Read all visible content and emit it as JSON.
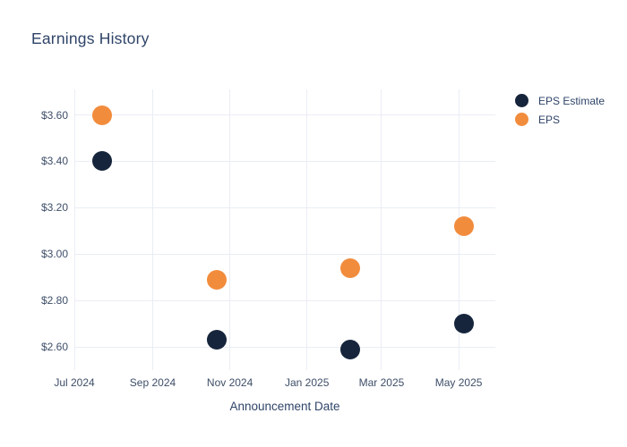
{
  "title": "Earnings History",
  "colors": {
    "background": "#FFFFFF",
    "grid": "#E9EDF4",
    "title_text": "#2F4468",
    "tick_text": "#3E4E68",
    "eps_estimate": "#16253C",
    "eps": "#F28C3D"
  },
  "legend": {
    "items": [
      {
        "label": "EPS Estimate",
        "color": "#16253C"
      },
      {
        "label": "EPS",
        "color": "#F28C3D"
      }
    ]
  },
  "chart_data": {
    "type": "scatter",
    "title": "Earnings History",
    "xlabel": "Announcement Date",
    "ylabel": "",
    "grid": true,
    "legend_position": "outside-top-right",
    "x_range": [
      "2024-07-01",
      "2025-05-30"
    ],
    "y_range": [
      2.5,
      3.71
    ],
    "x_ticks": [
      {
        "label": "Jul 2024",
        "date": "2024-07-01"
      },
      {
        "label": "Sep 2024",
        "date": "2024-09-01"
      },
      {
        "label": "Nov 2024",
        "date": "2024-11-01"
      },
      {
        "label": "Jan 2025",
        "date": "2025-01-01"
      },
      {
        "label": "Mar 2025",
        "date": "2025-03-01"
      },
      {
        "label": "May 2025",
        "date": "2025-05-01"
      }
    ],
    "y_ticks": [
      {
        "label": "$2.60",
        "value": 2.6
      },
      {
        "label": "$2.80",
        "value": 2.8
      },
      {
        "label": "$3.00",
        "value": 3.0
      },
      {
        "label": "$3.20",
        "value": 3.2
      },
      {
        "label": "$3.40",
        "value": 3.4
      },
      {
        "label": "$3.60",
        "value": 3.6
      }
    ],
    "series": [
      {
        "name": "EPS Estimate",
        "color": "#16253C",
        "points": [
          {
            "date": "2024-07-23",
            "value": 3.4
          },
          {
            "date": "2024-10-22",
            "value": 2.63
          },
          {
            "date": "2025-02-04",
            "value": 2.59
          },
          {
            "date": "2025-05-05",
            "value": 2.7
          }
        ]
      },
      {
        "name": "EPS",
        "color": "#F28C3D",
        "points": [
          {
            "date": "2024-07-23",
            "value": 3.6
          },
          {
            "date": "2024-10-22",
            "value": 2.89
          },
          {
            "date": "2025-02-04",
            "value": 2.94
          },
          {
            "date": "2025-05-05",
            "value": 3.12
          }
        ]
      }
    ]
  }
}
